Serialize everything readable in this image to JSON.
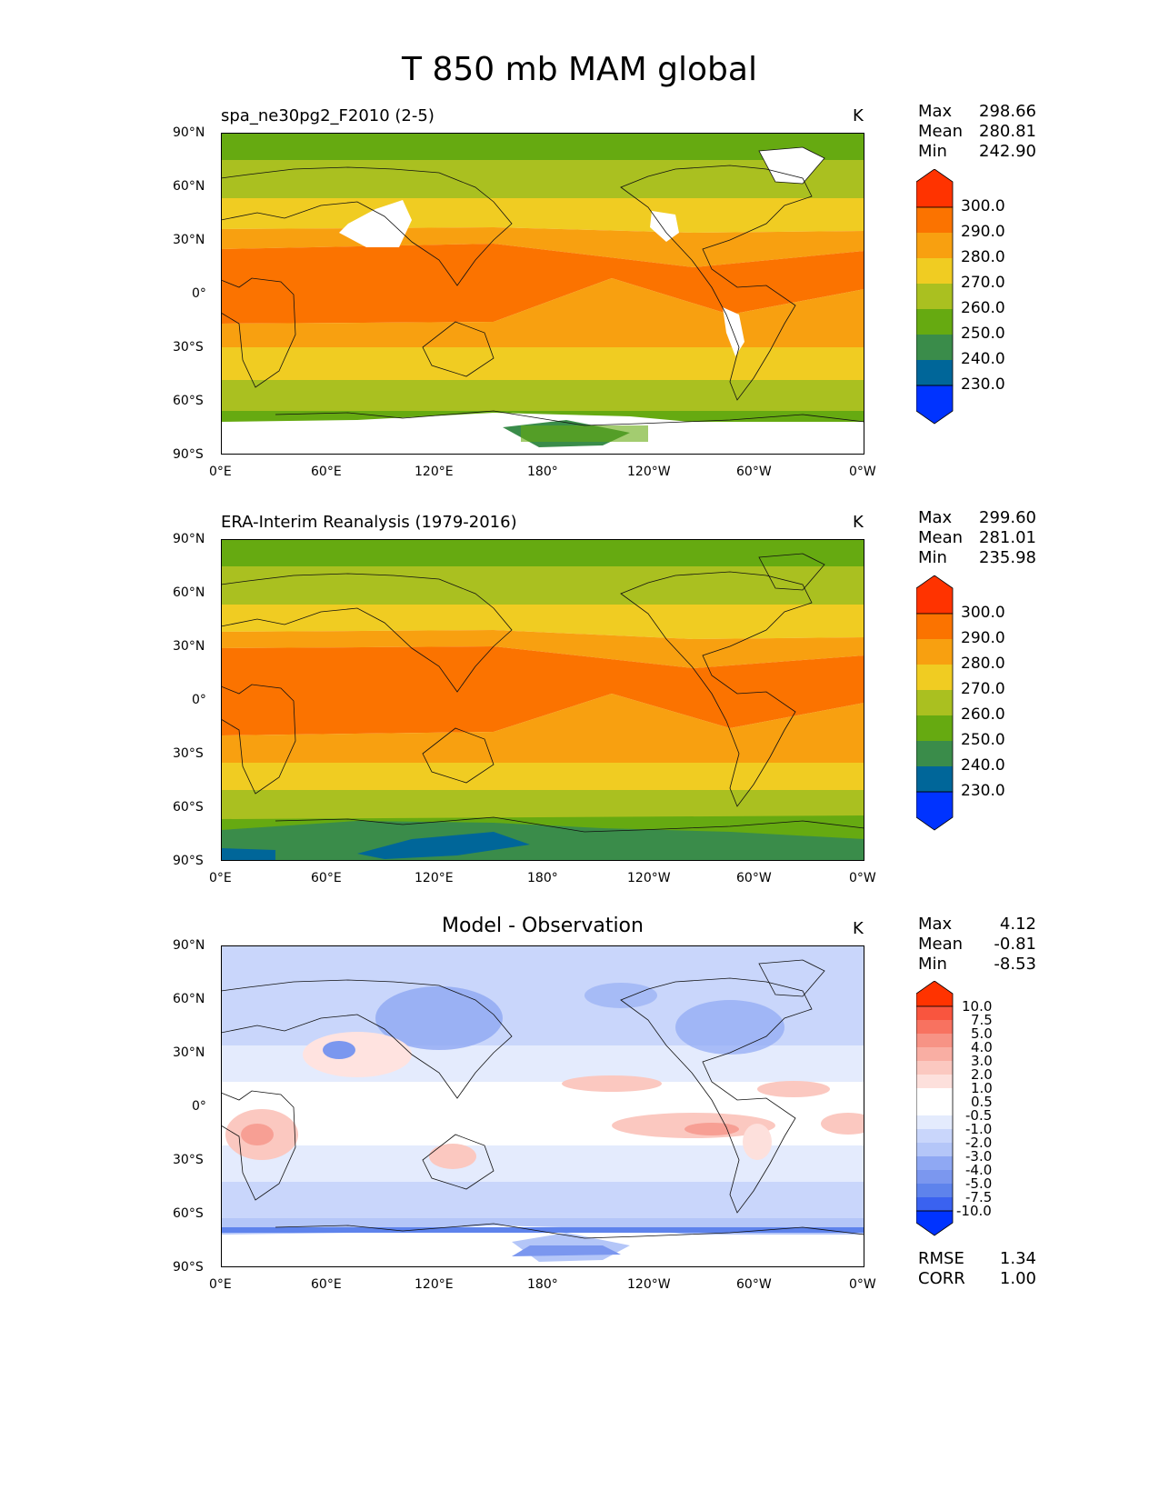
{
  "title": "T 850 mb MAM global",
  "colors": {
    "t_levels": [
      "#0033ff",
      "#006699",
      "#3a8c4a",
      "#66aa11",
      "#aac020",
      "#f0cc22",
      "#f8a010",
      "#fb7300",
      "#ff3300"
    ],
    "land_mask": "#ffffff",
    "coast": "#111111"
  },
  "x_ticks": [
    "0°E",
    "60°E",
    "120°E",
    "180°",
    "120°W",
    "60°W",
    "0°W"
  ],
  "y_ticks": [
    "90°N",
    "60°N",
    "30°N",
    "0°",
    "30°S",
    "60°S",
    "90°S"
  ],
  "panels": [
    {
      "left_title": "spa_ne30pg2_F2010 (2-5)",
      "center_title": "",
      "units": "K",
      "stats": [
        {
          "label": "Max",
          "value": "298.66"
        },
        {
          "label": "Mean",
          "value": "280.81"
        },
        {
          "label": "Min",
          "value": "242.90"
        }
      ],
      "colorbar": [
        "300.0",
        "290.0",
        "280.0",
        "270.0",
        "260.0",
        "250.0",
        "240.0",
        "230.0"
      ],
      "extra_stats": []
    },
    {
      "left_title": "ERA-Interim Reanalysis (1979-2016)",
      "center_title": "",
      "units": "K",
      "stats": [
        {
          "label": "Max",
          "value": "299.60"
        },
        {
          "label": "Mean",
          "value": "281.01"
        },
        {
          "label": "Min",
          "value": "235.98"
        }
      ],
      "colorbar": [
        "300.0",
        "290.0",
        "280.0",
        "270.0",
        "260.0",
        "250.0",
        "240.0",
        "230.0"
      ],
      "extra_stats": []
    },
    {
      "left_title": "",
      "center_title": "Model - Observation",
      "units": "K",
      "stats": [
        {
          "label": "Max",
          "value": "4.12"
        },
        {
          "label": "Mean",
          "value": "-0.81"
        },
        {
          "label": "Min",
          "value": "-8.53"
        }
      ],
      "colorbar": [
        "10.0",
        "7.5",
        "5.0",
        "4.0",
        "3.0",
        "2.0",
        "1.0",
        "0.5",
        "-0.5",
        "-1.0",
        "-2.0",
        "-3.0",
        "-4.0",
        "-5.0",
        "-7.5",
        "-10.0"
      ],
      "extra_stats": [
        {
          "label": "RMSE",
          "value": "1.34"
        },
        {
          "label": "CORR",
          "value": "1.00"
        }
      ]
    }
  ]
}
